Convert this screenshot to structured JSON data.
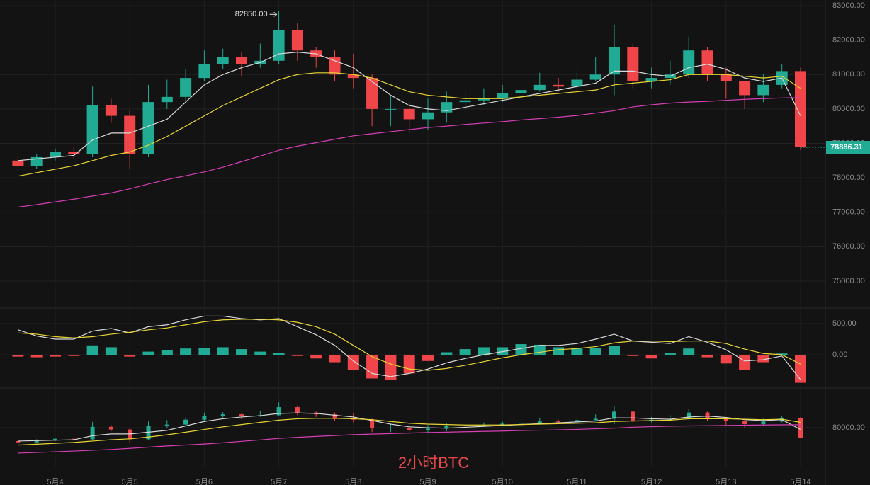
{
  "chart_data": {
    "type": "candlestick",
    "title": "2小时BTC",
    "categories": [
      null,
      null,
      "5月4",
      null,
      null,
      null,
      "5月5",
      null,
      null,
      null,
      "5月6",
      null,
      null,
      null,
      "5月7",
      null,
      null,
      null,
      "5月8",
      null,
      null,
      null,
      "5月9",
      null,
      null,
      null,
      "5月10",
      null,
      null,
      null,
      "5月11",
      null,
      null,
      null,
      "5月12",
      null,
      null,
      null,
      "5月13",
      null,
      null,
      null,
      "5月14"
    ],
    "open": [
      78500,
      78350,
      78600,
      78750,
      78700,
      80100,
      79800,
      78700,
      80200,
      80350,
      80900,
      81300,
      81500,
      81300,
      81400,
      82300,
      81700,
      81500,
      81000,
      80900,
      80000,
      80000,
      79700,
      79900,
      80200,
      80250,
      80300,
      80450,
      80550,
      80700,
      80650,
      80850,
      81000,
      81800,
      80800,
      80900,
      81000,
      81700,
      81000,
      80800,
      80400,
      80700,
      81100
    ],
    "high": [
      78650,
      78700,
      78850,
      78900,
      80650,
      80300,
      79950,
      80700,
      80850,
      81150,
      81700,
      81750,
      81650,
      81900,
      82850,
      82500,
      81800,
      81700,
      81600,
      81000,
      80400,
      80200,
      80300,
      80500,
      80500,
      80600,
      80700,
      81000,
      81050,
      80900,
      81100,
      81500,
      82450,
      81900,
      81200,
      81400,
      82100,
      81800,
      81200,
      80800,
      81000,
      81300,
      81200
    ],
    "low": [
      78200,
      78250,
      78500,
      78550,
      78600,
      79600,
      78250,
      78600,
      80000,
      80200,
      80800,
      81150,
      80950,
      81200,
      81300,
      81400,
      81200,
      80800,
      80600,
      79500,
      79500,
      79300,
      79400,
      79600,
      80000,
      80100,
      80200,
      80300,
      80500,
      80500,
      80600,
      80800,
      80400,
      80600,
      80600,
      80700,
      80900,
      80800,
      80300,
      80000,
      80200,
      80600,
      78800
    ],
    "close": [
      78350,
      78600,
      78750,
      78700,
      80100,
      79800,
      78700,
      80200,
      80350,
      80900,
      81300,
      81500,
      81300,
      81400,
      82300,
      81700,
      81500,
      81000,
      80900,
      80000,
      80000,
      79700,
      79900,
      80200,
      80250,
      80300,
      80450,
      80550,
      80700,
      80650,
      80850,
      81000,
      81800,
      80800,
      80900,
      81000,
      81700,
      81000,
      80800,
      80400,
      80700,
      81100,
      78886.31
    ],
    "up_color": "#22ab94",
    "down_color": "#f0464a",
    "ylim": [
      74320,
      83165
    ],
    "yticks": [
      {
        "value": 75000,
        "label": "75000.00"
      },
      {
        "value": 76000,
        "label": "76000.00"
      },
      {
        "value": 77000,
        "label": "77000.00"
      },
      {
        "value": 78000,
        "label": "78000.00"
      },
      {
        "value": 79000,
        "label": "79000.00"
      },
      {
        "value": 80000,
        "label": "80000.00"
      },
      {
        "value": 81000,
        "label": "81000.00"
      },
      {
        "value": 82000,
        "label": "82000.00"
      },
      {
        "value": 83000,
        "label": "83000.00"
      }
    ],
    "grid": true,
    "annotations": [
      {
        "value": 82850,
        "label": "82850.00"
      }
    ],
    "series": [
      {
        "color": "#d9d9d9",
        "values": [
          78500,
          78550,
          78600,
          78650,
          79100,
          79300,
          79300,
          79500,
          79700,
          80200,
          80700,
          81000,
          81200,
          81350,
          81600,
          81650,
          81600,
          81400,
          81200,
          80800,
          80400,
          80100,
          80000,
          79950,
          80050,
          80150,
          80250,
          80350,
          80450,
          80550,
          80650,
          80750,
          81100,
          81100,
          81000,
          80950,
          81200,
          81300,
          81150,
          80900,
          80800,
          80900,
          79800
        ]
      },
      {
        "color": "#e8d534",
        "values": [
          78050,
          78150,
          78250,
          78350,
          78500,
          78650,
          78750,
          78950,
          79200,
          79500,
          79800,
          80100,
          80350,
          80600,
          80850,
          81000,
          81050,
          81050,
          81000,
          80900,
          80700,
          80500,
          80400,
          80350,
          80300,
          80300,
          80300,
          80350,
          80400,
          80450,
          80500,
          80550,
          80700,
          80750,
          80800,
          80850,
          81000,
          81000,
          81000,
          80950,
          80900,
          80950,
          80600
        ]
      },
      {
        "color": "#d63fb4",
        "values": [
          77150,
          77220,
          77300,
          77380,
          77470,
          77560,
          77680,
          77820,
          77950,
          78060,
          78170,
          78310,
          78470,
          78630,
          78800,
          78920,
          79020,
          79120,
          79220,
          79280,
          79340,
          79400,
          79460,
          79500,
          79550,
          79590,
          79630,
          79680,
          79720,
          79760,
          79810,
          79880,
          79950,
          80060,
          80120,
          80170,
          80200,
          80220,
          80250,
          80280,
          80300,
          80320,
          80330
        ]
      }
    ],
    "macd": {
      "ylim": [
        -500,
        750
      ],
      "yticks": [
        {
          "value": 500,
          "label": "500.00"
        },
        {
          "value": 0,
          "label": "0.00"
        }
      ],
      "histogram": [
        -30,
        -40,
        -30,
        -20,
        150,
        120,
        -30,
        50,
        70,
        100,
        110,
        120,
        90,
        50,
        30,
        -20,
        -60,
        -120,
        -250,
        -380,
        -400,
        -300,
        -100,
        40,
        90,
        120,
        120,
        170,
        160,
        120,
        100,
        110,
        140,
        -20,
        -60,
        30,
        100,
        -40,
        -140,
        -250,
        -120,
        20,
        -450
      ],
      "series": [
        {
          "color": "#d9d9d9",
          "values": [
            400,
            300,
            250,
            250,
            380,
            420,
            350,
            450,
            480,
            560,
            620,
            620,
            580,
            560,
            580,
            450,
            320,
            150,
            -100,
            -300,
            -350,
            -300,
            -230,
            -130,
            -60,
            0,
            50,
            100,
            150,
            150,
            180,
            250,
            330,
            220,
            200,
            180,
            290,
            200,
            80,
            -100,
            -80,
            -20,
            -400
          ]
        },
        {
          "color": "#e8d534",
          "values": [
            350,
            330,
            290,
            270,
            290,
            330,
            360,
            400,
            430,
            480,
            530,
            560,
            570,
            570,
            560,
            520,
            450,
            330,
            150,
            -30,
            -150,
            -230,
            -250,
            -220,
            -170,
            -110,
            -50,
            0,
            40,
            80,
            100,
            130,
            190,
            220,
            220,
            210,
            220,
            220,
            180,
            90,
            20,
            0,
            -150
          ]
        }
      ]
    },
    "lower": {
      "ylim": [
        76750,
        84290
      ],
      "yticks": [
        {
          "value": 80000,
          "label": "80000.00"
        }
      ]
    }
  }
}
